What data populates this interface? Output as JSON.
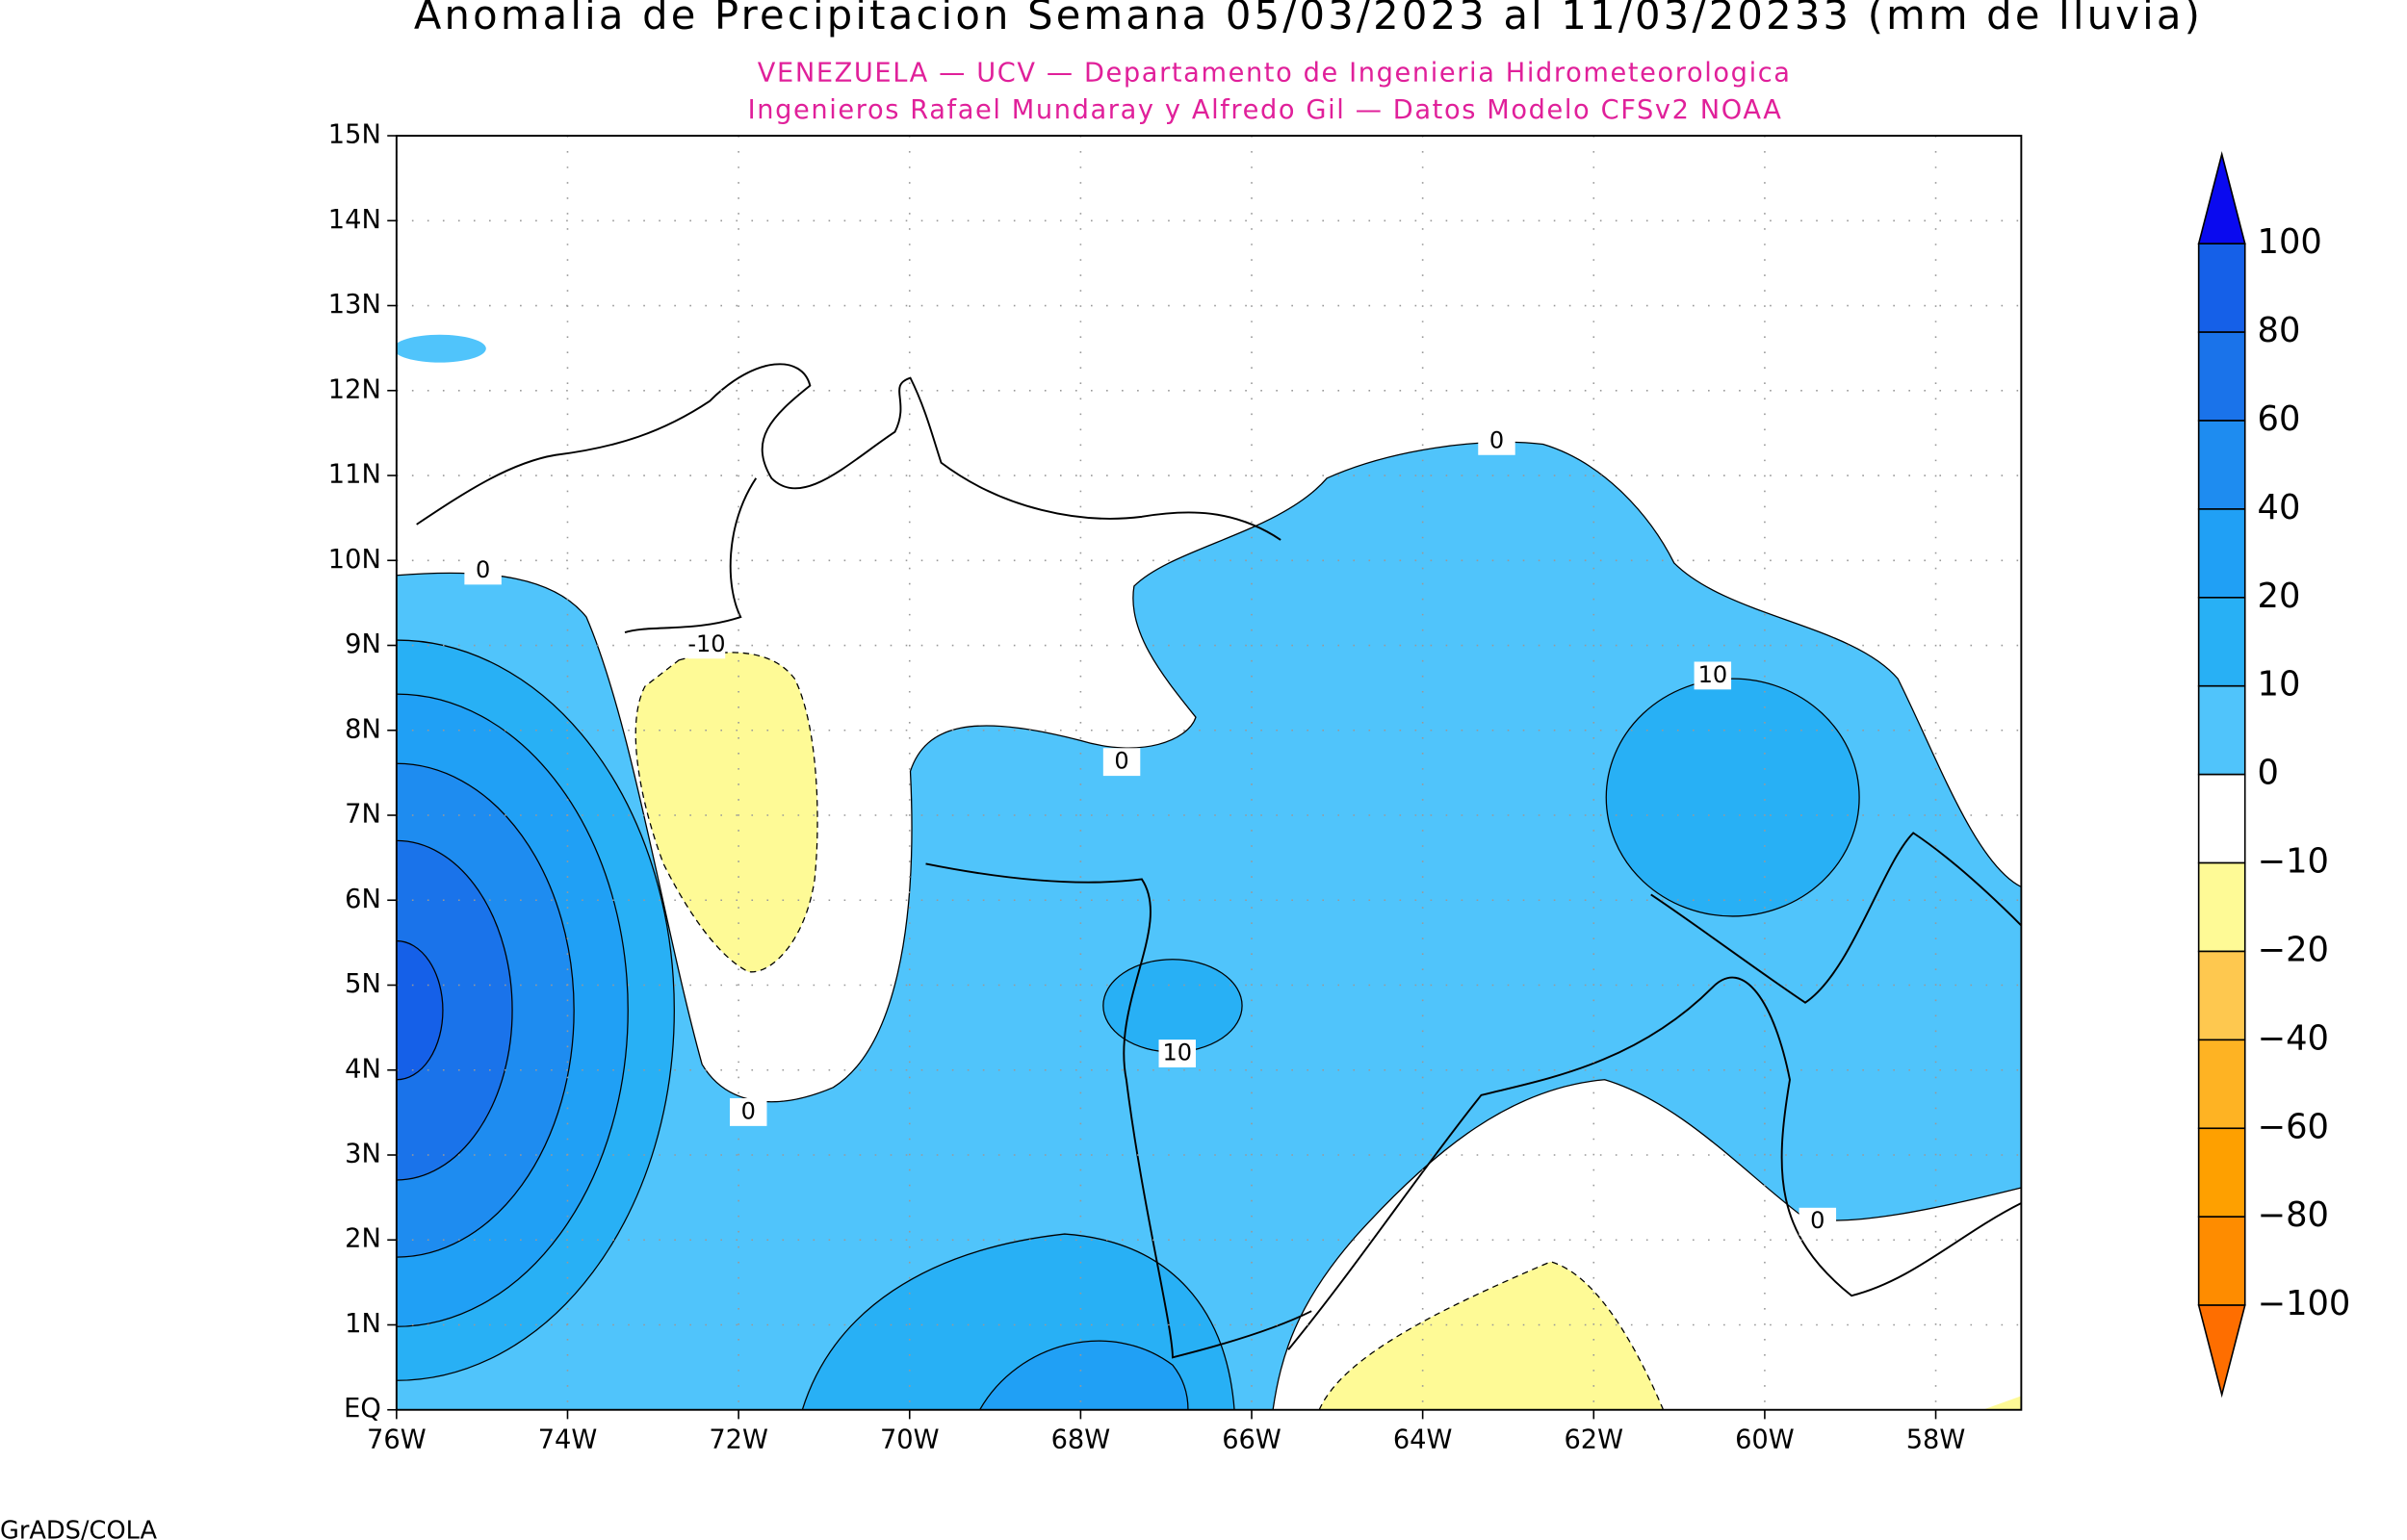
{
  "title": "Anomalia de Precipitacion Semana 05/03/2023 al 11/03/20233 (mm de lluvia)",
  "subtitle": [
    "VENEZUELA — UCV — Departamento de Ingenieria Hidrometeorologica",
    "Ingenieros Rafael Mundaray y Alfredo Gil — Datos Modelo CFSv2 NOAA"
  ],
  "lat_labels": [
    "15N",
    "14N",
    "13N",
    "12N",
    "11N",
    "10N",
    "9N",
    "8N",
    "7N",
    "6N",
    "5N",
    "4N",
    "3N",
    "2N",
    "1N",
    "EQ"
  ],
  "lon_labels": [
    "76W",
    "74W",
    "72W",
    "70W",
    "68W",
    "66W",
    "64W",
    "62W",
    "60W",
    "58W"
  ],
  "colorbar": {
    "labels": [
      "100",
      "80",
      "60",
      "40",
      "20",
      "10",
      "0",
      "−10",
      "−20",
      "−40",
      "−60",
      "−80",
      "−100"
    ],
    "colors": [
      "#0a0aef",
      "#1560e8",
      "#1a73ea",
      "#1e8cf0",
      "#20a0f5",
      "#28b0f5",
      "#50c4fb",
      "#ffffff",
      "#fefa96",
      "#fec84f",
      "#feb323",
      "#fea000",
      "#fe8c00",
      "#fe6e00"
    ]
  },
  "contour_labels": [
    "0",
    "-10",
    "0",
    "10",
    "0",
    "10",
    "0",
    "0"
  ],
  "footer": "GrADS/COLA"
}
